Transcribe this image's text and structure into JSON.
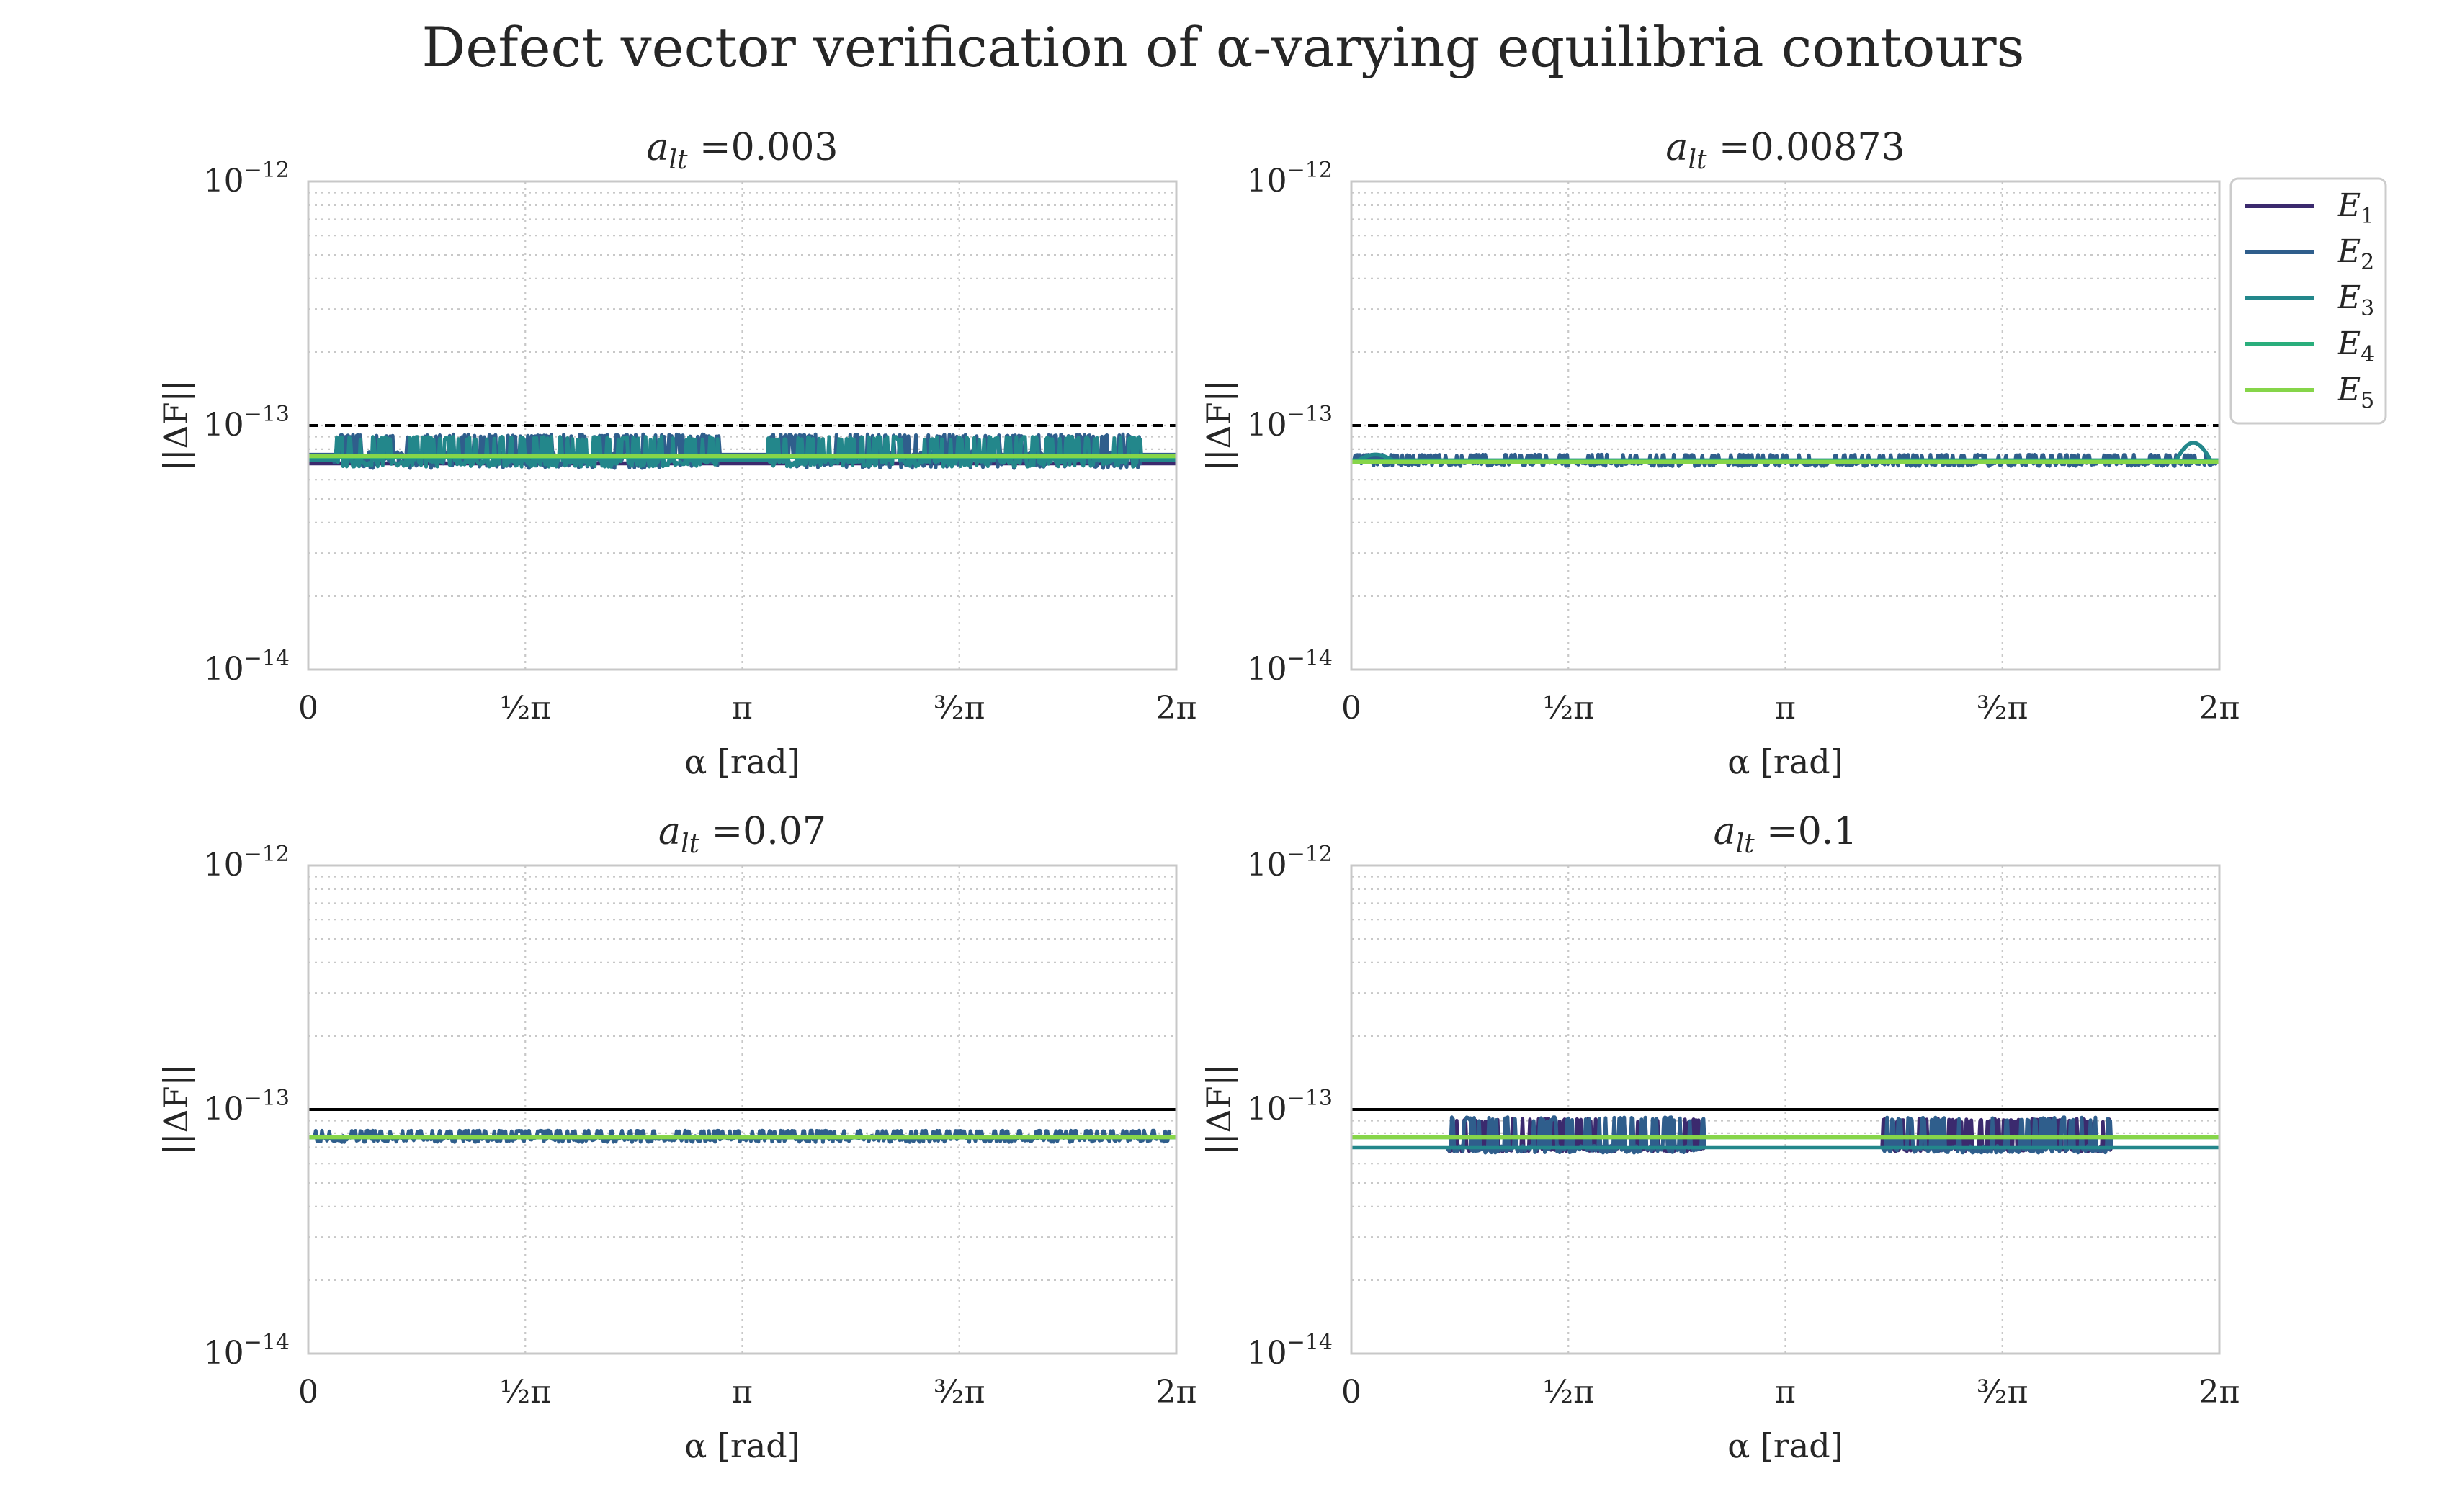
{
  "figure": {
    "title": "Defect vector verification of α-varying equilibria contours"
  },
  "colors": {
    "E1": "#3b2a6e",
    "E2": "#2f5e8c",
    "E3": "#23878b",
    "E4": "#2aae7c",
    "E5": "#86d549",
    "reference": "#000000",
    "grid": "#c8c8c8",
    "frame": "#c8c8c8"
  },
  "legend": {
    "placement": "right of top-right panel",
    "entries": [
      {
        "key": "E1",
        "base": "E",
        "sub": "1"
      },
      {
        "key": "E2",
        "base": "E",
        "sub": "2"
      },
      {
        "key": "E3",
        "base": "E",
        "sub": "3"
      },
      {
        "key": "E4",
        "base": "E",
        "sub": "4"
      },
      {
        "key": "E5",
        "base": "E",
        "sub": "5"
      }
    ]
  },
  "chart_data": [
    {
      "type": "line",
      "title_base": "a",
      "title_sub": "lt",
      "title_rest": " =0.003",
      "xlabel": "α [rad]",
      "ylabel": "||ΔF||",
      "xlim": [
        0,
        6.2832
      ],
      "ylim": [
        1e-14,
        1e-12
      ],
      "yscale": "log",
      "grid": true,
      "x_ticks": [
        {
          "value": 0,
          "label": "0"
        },
        {
          "value": 1.5708,
          "label": "½π"
        },
        {
          "value": 3.1416,
          "label": "π"
        },
        {
          "value": 4.7124,
          "label": "³⁄₂π"
        },
        {
          "value": 6.2832,
          "label": "2π"
        }
      ],
      "y_ticks": [
        {
          "value": 1e-14,
          "base": "10",
          "exp": "−14"
        },
        {
          "value": 1e-13,
          "base": "10",
          "exp": "−13"
        },
        {
          "value": 1e-12,
          "base": "10",
          "exp": "−12"
        }
      ],
      "reference": {
        "value": 1e-13,
        "style": "dashed"
      },
      "series": [
        {
          "key": "E1",
          "min": 6.7e-14,
          "max": 7.3e-14,
          "base": 7e-14,
          "noisy": false
        },
        {
          "key": "E2",
          "min": 6.3e-14,
          "max": 9.2e-14,
          "base": 7.6e-14,
          "noisy": true,
          "bands": [
            [
              0.18,
              2.98
            ],
            [
              3.33,
              6.03
            ]
          ]
        },
        {
          "key": "E3",
          "min": 6.6e-14,
          "max": 9e-14,
          "base": 7.2e-14,
          "noisy": true,
          "bands": [
            [
              0.2,
              2.98
            ],
            [
              3.33,
              6.03
            ]
          ]
        },
        {
          "key": "E4",
          "min": 7e-14,
          "max": 7.8e-14,
          "base": 7.4e-14,
          "noisy": false
        },
        {
          "key": "E5",
          "min": 7.3e-14,
          "max": 7.7e-14,
          "base": 7.5e-14,
          "noisy": false
        }
      ]
    },
    {
      "type": "line",
      "title_base": "a",
      "title_sub": "lt",
      "title_rest": " =0.00873",
      "xlabel": "α [rad]",
      "ylabel": "||ΔF||",
      "xlim": [
        0,
        6.2832
      ],
      "ylim": [
        1e-14,
        1e-12
      ],
      "yscale": "log",
      "grid": true,
      "x_ticks": [
        {
          "value": 0,
          "label": "0"
        },
        {
          "value": 1.5708,
          "label": "½π"
        },
        {
          "value": 3.1416,
          "label": "π"
        },
        {
          "value": 4.7124,
          "label": "³⁄₂π"
        },
        {
          "value": 6.2832,
          "label": "2π"
        }
      ],
      "y_ticks": [
        {
          "value": 1e-14,
          "base": "10",
          "exp": "−14"
        },
        {
          "value": 1e-13,
          "base": "10",
          "exp": "−13"
        },
        {
          "value": 1e-12,
          "base": "10",
          "exp": "−12"
        }
      ],
      "reference": {
        "value": 1e-13,
        "style": "dashed"
      },
      "series": [
        {
          "key": "E1",
          "min": 6.9e-14,
          "max": 7.2e-14,
          "base": 7.1e-14,
          "noisy": false
        },
        {
          "key": "E2",
          "min": 6.7e-14,
          "max": 7.6e-14,
          "base": 7.1e-14,
          "noisy": true,
          "bands": [
            [
              0.02,
              6.26
            ]
          ]
        },
        {
          "key": "E3",
          "min": 7e-14,
          "max": 8.5e-14,
          "base": 7.2e-14,
          "noisy": false,
          "bumps": [
            [
              0.05,
              0.3,
              7.6e-14
            ],
            [
              5.97,
              6.22,
              8.5e-14
            ]
          ]
        },
        {
          "key": "E4",
          "min": 7e-14,
          "max": 7.3e-14,
          "base": 7.15e-14,
          "noisy": false
        },
        {
          "key": "E5",
          "min": 7e-14,
          "max": 7.2e-14,
          "base": 7.1e-14,
          "noisy": false
        }
      ]
    },
    {
      "type": "line",
      "title_base": "a",
      "title_sub": "lt",
      "title_rest": " =0.07",
      "xlabel": "α [rad]",
      "ylabel": "||ΔF||",
      "xlim": [
        0,
        6.2832
      ],
      "ylim": [
        1e-14,
        1e-12
      ],
      "yscale": "log",
      "grid": true,
      "x_ticks": [
        {
          "value": 0,
          "label": "0"
        },
        {
          "value": 1.5708,
          "label": "½π"
        },
        {
          "value": 3.1416,
          "label": "π"
        },
        {
          "value": 4.7124,
          "label": "³⁄₂π"
        },
        {
          "value": 6.2832,
          "label": "2π"
        }
      ],
      "y_ticks": [
        {
          "value": 1e-14,
          "base": "10",
          "exp": "−14"
        },
        {
          "value": 1e-13,
          "base": "10",
          "exp": "−13"
        },
        {
          "value": 1e-12,
          "base": "10",
          "exp": "−12"
        }
      ],
      "reference": {
        "value": 1e-13,
        "style": "solid"
      },
      "series": [
        {
          "key": "E1",
          "min": 7.6e-14,
          "max": 7.8e-14,
          "base": 7.7e-14,
          "noisy": false
        },
        {
          "key": "E2",
          "min": 7.2e-14,
          "max": 8.2e-14,
          "base": 7.7e-14,
          "noisy": true,
          "bands": [
            [
              0.05,
              6.23
            ]
          ]
        },
        {
          "key": "E3",
          "min": 7.6e-14,
          "max": 7.9e-14,
          "base": 7.7e-14,
          "noisy": false
        },
        {
          "key": "E4",
          "min": 7.6e-14,
          "max": 7.8e-14,
          "base": 7.7e-14,
          "noisy": false
        },
        {
          "key": "E5",
          "min": 7.6e-14,
          "max": 7.8e-14,
          "base": 7.7e-14,
          "noisy": false
        }
      ]
    },
    {
      "type": "line",
      "title_base": "a",
      "title_sub": "lt",
      "title_rest": " =0.1",
      "xlabel": "α [rad]",
      "ylabel": "||ΔF||",
      "xlim": [
        0,
        6.2832
      ],
      "ylim": [
        1e-14,
        1e-12
      ],
      "yscale": "log",
      "grid": true,
      "x_ticks": [
        {
          "value": 0,
          "label": "0"
        },
        {
          "value": 1.5708,
          "label": "½π"
        },
        {
          "value": 3.1416,
          "label": "π"
        },
        {
          "value": 4.7124,
          "label": "³⁄₂π"
        },
        {
          "value": 6.2832,
          "label": "2π"
        }
      ],
      "y_ticks": [
        {
          "value": 1e-14,
          "base": "10",
          "exp": "−14"
        },
        {
          "value": 1e-13,
          "base": "10",
          "exp": "−13"
        },
        {
          "value": 1e-12,
          "base": "10",
          "exp": "−12"
        }
      ],
      "reference": {
        "value": 1e-13,
        "style": "solid"
      },
      "series": [
        {
          "key": "E1",
          "min": 6.6e-14,
          "max": 9.2e-14,
          "base": 7e-14,
          "noisy": true,
          "bands": [
            [
              0.7,
              2.55
            ],
            [
              3.85,
              5.5
            ]
          ]
        },
        {
          "key": "E2",
          "min": 6.5e-14,
          "max": 9.3e-14,
          "base": 7e-14,
          "noisy": true,
          "bands": [
            [
              0.7,
              2.55
            ],
            [
              3.85,
              5.5
            ]
          ]
        },
        {
          "key": "E3",
          "min": 6.8e-14,
          "max": 7.2e-14,
          "base": 7e-14,
          "noisy": false
        },
        {
          "key": "E4",
          "min": 7.6e-14,
          "max": 7.8e-14,
          "base": 7.7e-14,
          "noisy": false
        },
        {
          "key": "E5",
          "min": 7.6e-14,
          "max": 7.8e-14,
          "base": 7.7e-14,
          "noisy": false
        }
      ]
    }
  ]
}
